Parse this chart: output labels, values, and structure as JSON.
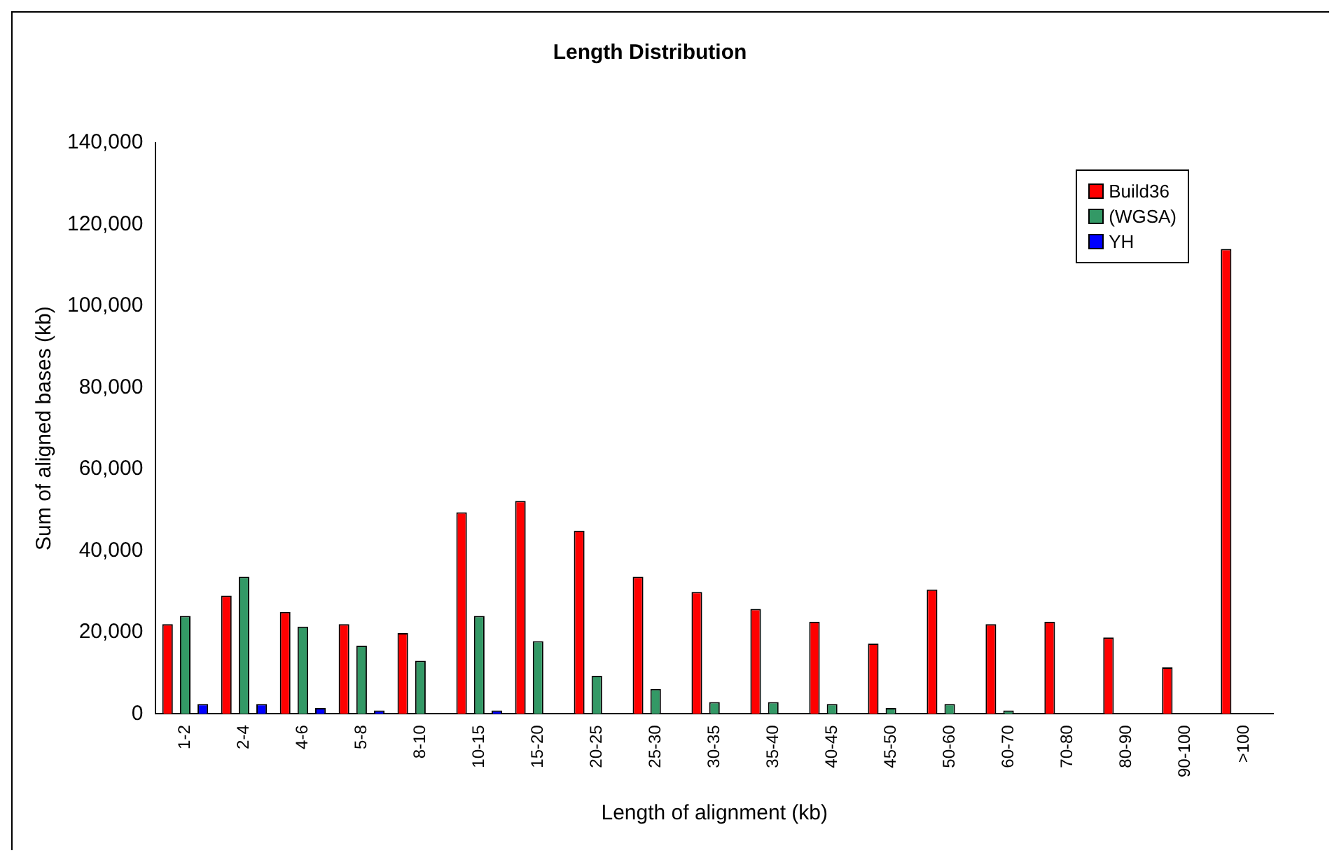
{
  "chart_data": {
    "type": "bar",
    "title": "Length Distribution",
    "xlabel": "Length of alignment (kb)",
    "ylabel": "Sum of aligned bases (kb)",
    "categories": [
      "1-2",
      "2-4",
      "4-6",
      "5-8",
      "8-10",
      "10-15",
      "15-20",
      "20-25",
      "25-30",
      "30-35",
      "35-40",
      "40-45",
      "45-50",
      "50-60",
      "60-70",
      "70-80",
      "80-90",
      "90-100",
      ">100"
    ],
    "series": [
      {
        "name": "Build36",
        "color": "#ff0000",
        "values": [
          22000,
          29000,
          25000,
          22000,
          19800,
          49400,
          52200,
          44900,
          33600,
          29900,
          25700,
          22600,
          17200,
          30500,
          22000,
          22600,
          18700,
          11400,
          114000
        ]
      },
      {
        "name": "(WGSA)",
        "color": "#339966",
        "values": [
          24000,
          33600,
          21400,
          16700,
          13000,
          24000,
          17800,
          9300,
          6100,
          2900,
          2900,
          2400,
          1400,
          2400,
          800,
          0,
          0,
          0,
          0
        ]
      },
      {
        "name": "YH",
        "color": "#0000ff",
        "values": [
          2400,
          2400,
          1400,
          800,
          0,
          800,
          0,
          0,
          0,
          0,
          0,
          0,
          0,
          0,
          0,
          0,
          0,
          0,
          0
        ]
      }
    ],
    "ylim": [
      0,
      140000
    ],
    "yticks": [
      0,
      {
        "value": 20000,
        "label": "20,000"
      },
      {
        "value": 40000,
        "label": "40,000"
      },
      {
        "value": 60000,
        "label": "60,000"
      },
      {
        "value": 80000,
        "label": "80,000"
      },
      {
        "value": 100000,
        "label": "100,000"
      },
      {
        "value": 120000,
        "label": "120,000"
      },
      {
        "value": 140000,
        "label": "140,000"
      }
    ],
    "grid": false,
    "legend": "top right"
  }
}
